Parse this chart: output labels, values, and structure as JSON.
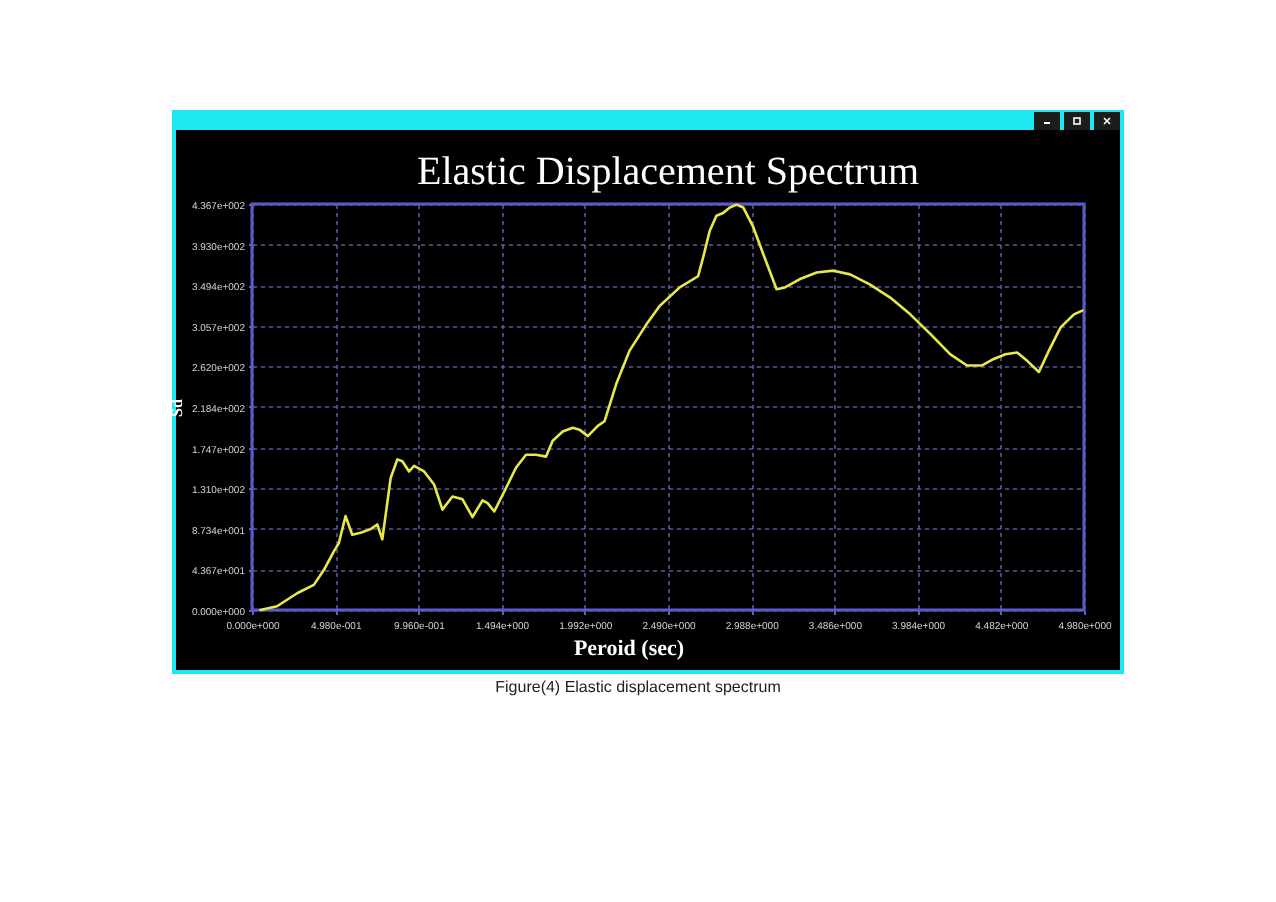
{
  "chart_data": {
    "type": "line",
    "title": "Elastic Displacement Spectrum",
    "xlabel": "Peroid (sec)",
    "ylabel": "Sd",
    "annotations": [
      "Figure(4) Elastic displacement spectrum"
    ],
    "x": [
      0.05,
      0.15,
      0.27,
      0.37,
      0.43,
      0.49,
      0.52,
      0.56,
      0.6,
      0.65,
      0.71,
      0.75,
      0.78,
      0.83,
      0.87,
      0.9,
      0.94,
      0.97,
      1.03,
      1.09,
      1.14,
      1.2,
      1.26,
      1.32,
      1.38,
      1.41,
      1.45,
      1.52,
      1.58,
      1.64,
      1.7,
      1.76,
      1.8,
      1.86,
      1.92,
      1.96,
      2.01,
      2.07,
      2.11,
      2.18,
      2.26,
      2.36,
      2.44,
      2.56,
      2.67,
      2.7,
      2.74,
      2.78,
      2.82,
      2.86,
      2.9,
      2.94,
      3.0,
      3.06,
      3.14,
      3.19,
      3.28,
      3.38,
      3.48,
      3.58,
      3.7,
      3.82,
      3.94,
      4.06,
      4.18,
      4.28,
      4.37,
      4.44,
      4.51,
      4.58,
      4.64,
      4.71,
      4.77,
      4.84,
      4.92,
      4.97
    ],
    "series": [
      {
        "color": "#e8e84a",
        "values": [
          0,
          4,
          18,
          27,
          43,
          63,
          72,
          101,
          81,
          83,
          87,
          92,
          76,
          142,
          162,
          160,
          149,
          155,
          149,
          135,
          108,
          122,
          119,
          100,
          118,
          115,
          106,
          131,
          153,
          167,
          167,
          165,
          182,
          192,
          196,
          194,
          187,
          198,
          203,
          243,
          279,
          307,
          327,
          347,
          359,
          379,
          408,
          424,
          427,
          433,
          436,
          433,
          412,
          383,
          345,
          347,
          356,
          363,
          365,
          361,
          350,
          336,
          318,
          297,
          275,
          263,
          263,
          270,
          275,
          277,
          268,
          256,
          279,
          304,
          318,
          322
        ]
      }
    ],
    "xlim": [
      0,
      4.98
    ],
    "ylim": [
      0,
      436.7
    ],
    "xticks": [
      {
        "value": 0,
        "label": "0.000e+000"
      },
      {
        "value": 0.498,
        "label": "4.980e-001"
      },
      {
        "value": 0.996,
        "label": "9.960e-001"
      },
      {
        "value": 1.494,
        "label": "1.494e+000"
      },
      {
        "value": 1.992,
        "label": "1.992e+000"
      },
      {
        "value": 2.49,
        "label": "2.490e+000"
      },
      {
        "value": 2.988,
        "label": "2.988e+000"
      },
      {
        "value": 3.486,
        "label": "3.486e+000"
      },
      {
        "value": 3.984,
        "label": "3.984e+000"
      },
      {
        "value": 4.482,
        "label": "4.482e+000"
      },
      {
        "value": 4.98,
        "label": "4.980e+000"
      }
    ],
    "yticks": [
      {
        "value": 0,
        "label": "0.000e+000"
      },
      {
        "value": 43.67,
        "label": "4.367e+001"
      },
      {
        "value": 87.34,
        "label": "8.734e+001"
      },
      {
        "value": 131.0,
        "label": "1.310e+002"
      },
      {
        "value": 174.7,
        "label": "1.747e+002"
      },
      {
        "value": 218.4,
        "label": "2.184e+002"
      },
      {
        "value": 262.0,
        "label": "2.620e+002"
      },
      {
        "value": 305.7,
        "label": "3.057e+002"
      },
      {
        "value": 349.4,
        "label": "3.494e+002"
      },
      {
        "value": 393.0,
        "label": "3.930e+002"
      },
      {
        "value": 436.7,
        "label": "4.367e+002"
      }
    ],
    "grid": true
  }
}
